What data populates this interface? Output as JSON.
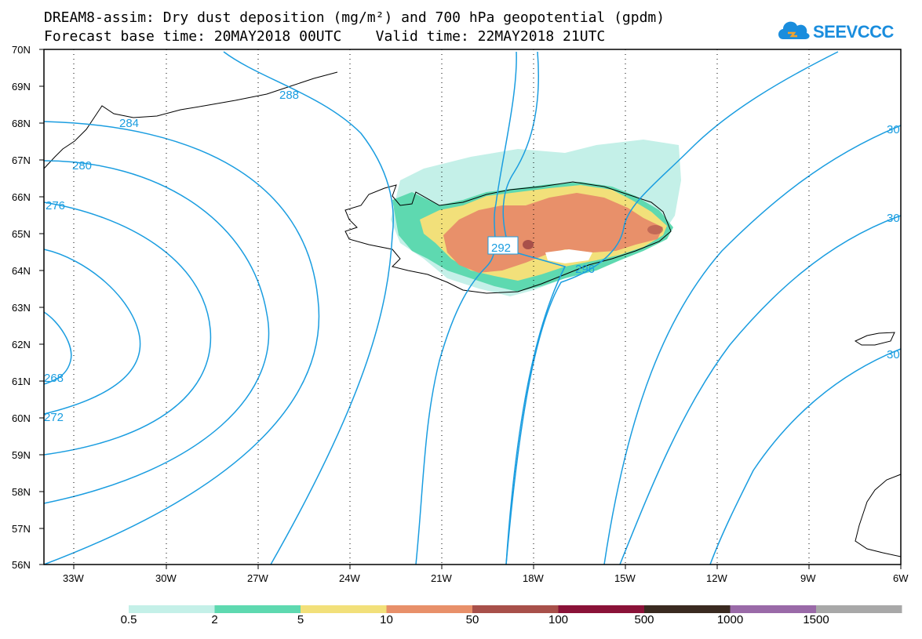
{
  "title_line1": "DREAM8-assim: Dry dust deposition (mg/m²) and 700 hPa geopotential (gpdm)",
  "title_line2": "Forecast base time: 20MAY2018 00UTC    Valid time: 22MAY2018 21UTC",
  "logo_text": "SEEVCCC",
  "lat_labels": [
    "70N",
    "69N",
    "68N",
    "67N",
    "66N",
    "65N",
    "64N",
    "63N",
    "62N",
    "61N",
    "60N",
    "59N",
    "58N",
    "57N",
    "56N"
  ],
  "lon_labels": [
    "33W",
    "30W",
    "27W",
    "24W",
    "21W",
    "18W",
    "15W",
    "12W",
    "9W",
    "6W"
  ],
  "contour_labels": [
    "268",
    "272",
    "276",
    "280",
    "284",
    "288",
    "292",
    "296",
    "30",
    "30",
    "30"
  ],
  "colorbar": {
    "labels": [
      "0.5",
      "2",
      "5",
      "10",
      "50",
      "100",
      "500",
      "1000",
      "1500"
    ],
    "colors": [
      "#c4f0e8",
      "#5ed9b0",
      "#f2e07a",
      "#e8906a",
      "#a8504a",
      "#8a1238",
      "#3a2a20",
      "#9a6aa8",
      "#a8a8a8"
    ]
  },
  "colors": {
    "contour": "#1a9de0",
    "land_dust_light": "#c4f0e8",
    "land_dust_green": "#5ed9b0",
    "land_dust_yellow": "#f2e07a",
    "land_dust_orange": "#e8906a",
    "land_dust_brown": "#a8504a"
  }
}
